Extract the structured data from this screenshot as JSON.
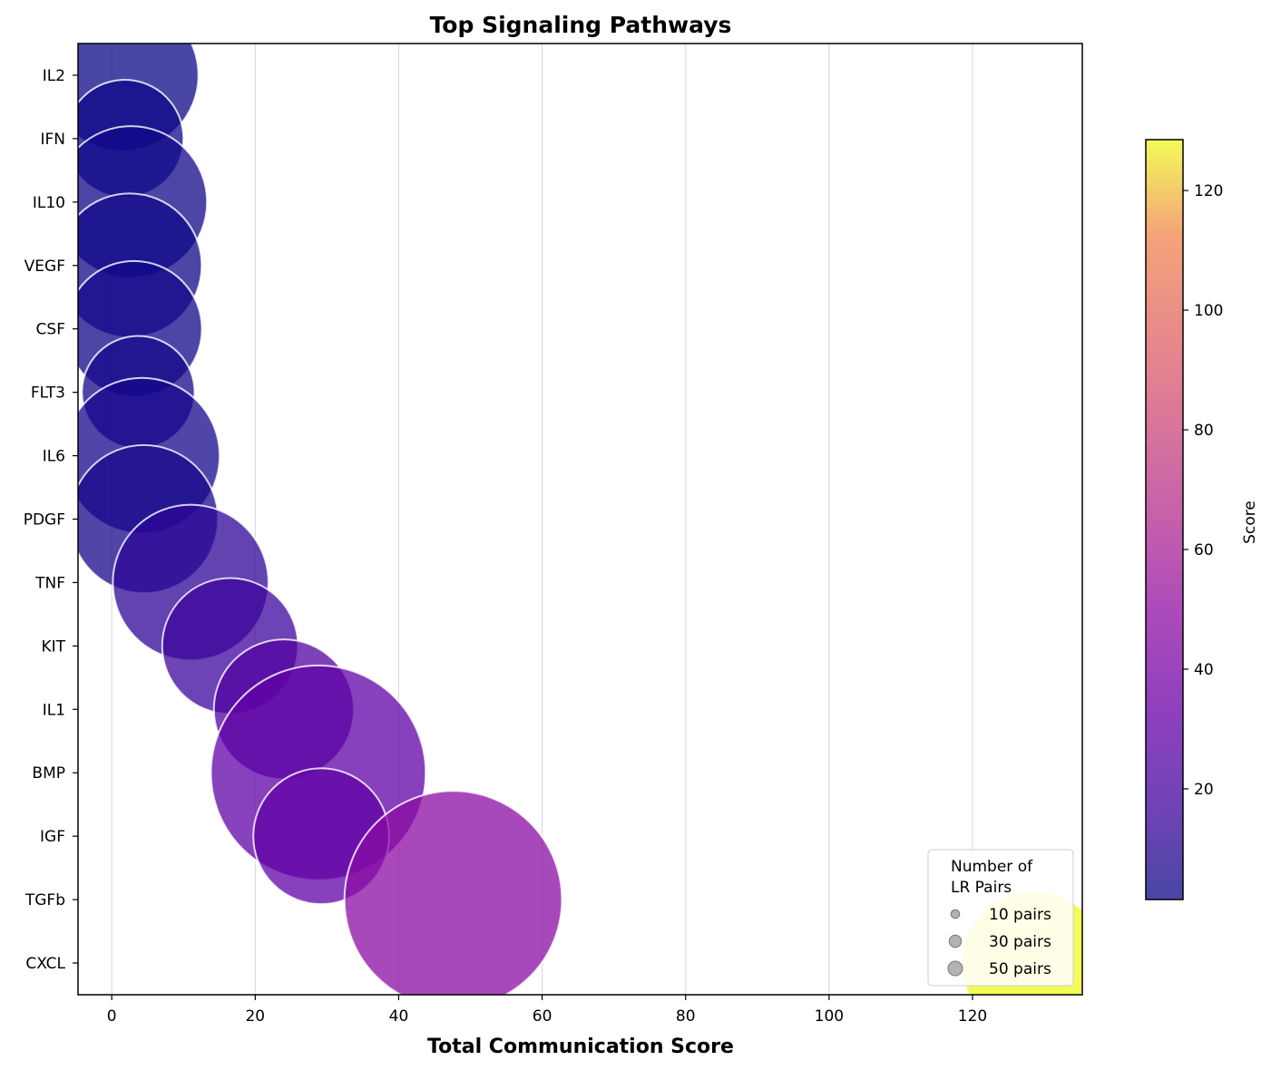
{
  "chart_data": {
    "type": "scatter",
    "title": "Top Signaling Pathways",
    "xlabel": "Total Communication Score",
    "ylabel": "",
    "xlim": [
      -4.7,
      135.3
    ],
    "xticks": [
      0,
      20,
      40,
      60,
      80,
      100,
      120
    ],
    "grid": "vertical",
    "categories": [
      "IL2",
      "IFN",
      "IL10",
      "VEGF",
      "CSF",
      "FLT3",
      "IL6",
      "PDGF",
      "TNF",
      "KIT",
      "IL1",
      "BMP",
      "IGF",
      "TGFb",
      "CXCL"
    ],
    "points": [
      {
        "pathway": "IL2",
        "score": 1.5,
        "pairs": 20,
        "color_value": 1.5
      },
      {
        "pathway": "IFN",
        "score": 1.8,
        "pairs": 12,
        "color_value": 1.8
      },
      {
        "pathway": "IL10",
        "score": 2.7,
        "pairs": 20,
        "color_value": 2.7
      },
      {
        "pathway": "VEGF",
        "score": 2.5,
        "pairs": 18,
        "color_value": 2.5
      },
      {
        "pathway": "CSF",
        "score": 3.1,
        "pairs": 16,
        "color_value": 3.1
      },
      {
        "pathway": "FLT3",
        "score": 3.7,
        "pairs": 11,
        "color_value": 3.7
      },
      {
        "pathway": "IL6",
        "score": 4.2,
        "pairs": 21,
        "color_value": 4.2
      },
      {
        "pathway": "PDGF",
        "score": 4.5,
        "pairs": 19,
        "color_value": 4.5
      },
      {
        "pathway": "TNF",
        "score": 11.0,
        "pairs": 21,
        "color_value": 11.0
      },
      {
        "pathway": "KIT",
        "score": 16.5,
        "pairs": 16,
        "color_value": 16.5
      },
      {
        "pathway": "IL1",
        "score": 24.0,
        "pairs": 17,
        "color_value": 24.0
      },
      {
        "pathway": "BMP",
        "score": 28.8,
        "pairs": 40,
        "color_value": 28.8
      },
      {
        "pathway": "IGF",
        "score": 29.2,
        "pairs": 16,
        "color_value": 29.2
      },
      {
        "pathway": "TGFb",
        "score": 47.6,
        "pairs": 41,
        "color_value": 47.6
      },
      {
        "pathway": "CXCL",
        "score": 128.5,
        "pairs": 18,
        "color_value": 128.5
      }
    ],
    "colorbar": {
      "label": "Score",
      "colormap": "plasma",
      "range": [
        1.5,
        128.5
      ],
      "ticks": [
        20,
        40,
        60,
        80,
        100,
        120
      ]
    },
    "size_legend": {
      "title_lines": [
        "Number of",
        "LR Pairs"
      ],
      "entries": [
        {
          "label": "10 pairs",
          "pairs": 10
        },
        {
          "label": "30 pairs",
          "pairs": 30
        },
        {
          "label": "50 pairs",
          "pairs": 50
        }
      ],
      "placement": "lower-right"
    },
    "marker_edge_color": "#ffffff",
    "marker_alpha": 0.75
  }
}
